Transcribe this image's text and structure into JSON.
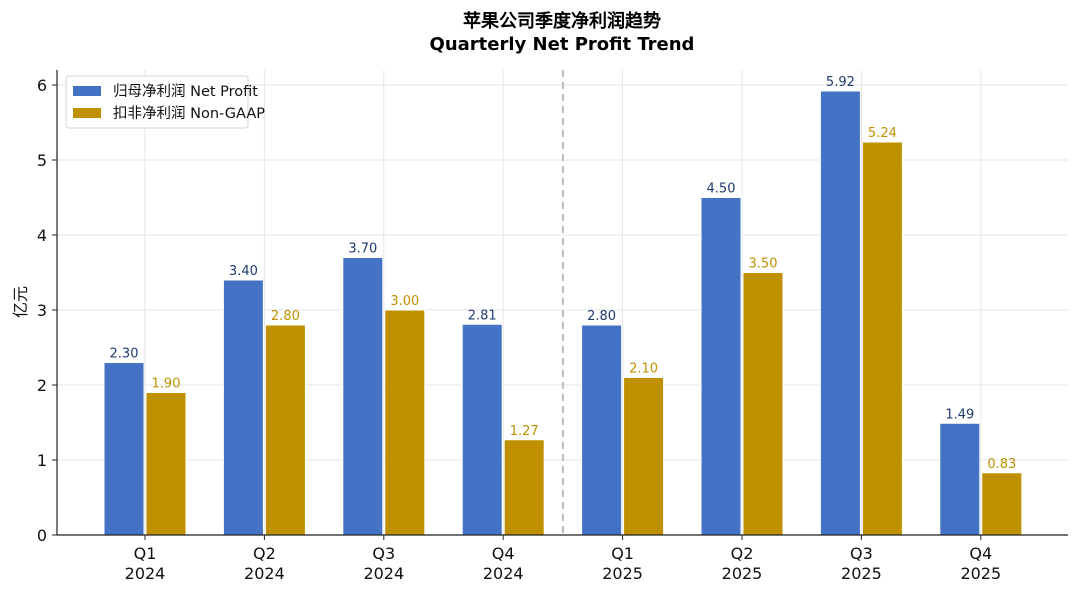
{
  "chart_data": {
    "type": "bar",
    "title_line1": "苹果公司季度净利润趋势",
    "title_line2": "Quarterly Net Profit Trend",
    "ylabel": "亿元",
    "xlabel": "",
    "ylim": [
      0,
      6.2
    ],
    "yticks": [
      "0",
      "1",
      "2",
      "3",
      "4",
      "5",
      "6"
    ],
    "grid": true,
    "legend_position": "top-left",
    "categories": [
      {
        "quarter": "Q1",
        "year": "2024"
      },
      {
        "quarter": "Q2",
        "year": "2024"
      },
      {
        "quarter": "Q3",
        "year": "2024"
      },
      {
        "quarter": "Q4",
        "year": "2024"
      },
      {
        "quarter": "Q1",
        "year": "2025"
      },
      {
        "quarter": "Q2",
        "year": "2025"
      },
      {
        "quarter": "Q3",
        "year": "2025"
      },
      {
        "quarter": "Q4",
        "year": "2025"
      }
    ],
    "series": [
      {
        "name": "归母净利润 Net Profit",
        "color": "#4472C4",
        "label_color": "#1F3A6E",
        "values": [
          2.3,
          3.4,
          3.7,
          2.81,
          2.8,
          4.5,
          5.92,
          1.49
        ],
        "labels": [
          "2.30",
          "3.40",
          "3.70",
          "2.81",
          "2.80",
          "4.50",
          "5.92",
          "1.49"
        ]
      },
      {
        "name": "扣非净利润 Non-GAAP",
        "color": "#BF9000",
        "label_color": "#BF9000",
        "values": [
          1.9,
          2.8,
          3.0,
          1.27,
          2.1,
          3.5,
          5.24,
          0.83
        ],
        "labels": [
          "1.90",
          "2.80",
          "3.00",
          "1.27",
          "2.10",
          "3.50",
          "5.24",
          "0.83"
        ]
      }
    ],
    "divider_after_index": 3
  }
}
